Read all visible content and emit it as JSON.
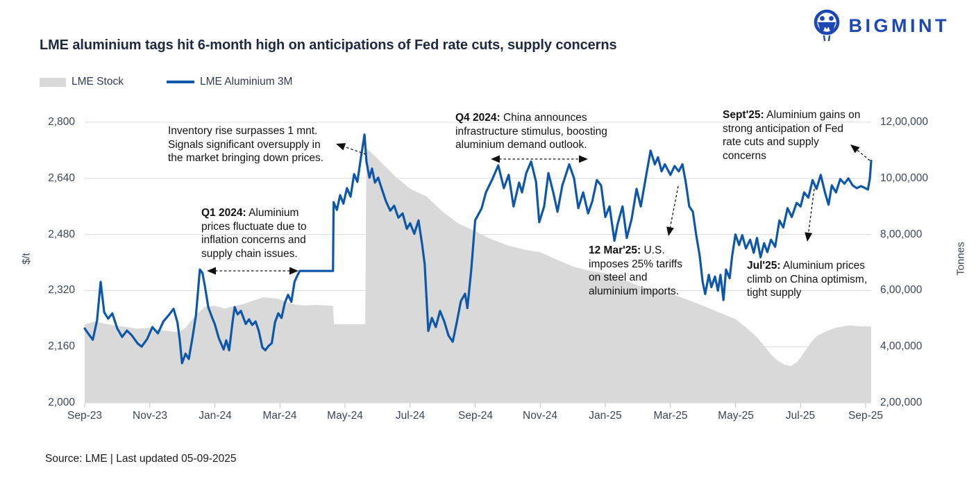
{
  "logo": {
    "text": "BIGMINT"
  },
  "title": "LME aluminium tags hit 6-month high on anticipations of Fed rate cuts, supply concerns",
  "legend": [
    {
      "label": "LME Stock",
      "type": "area",
      "color": "#d9d9d9"
    },
    {
      "label": "LME Aluminium 3M",
      "type": "line",
      "color": "#0e57a8"
    }
  ],
  "axes": {
    "y_left": {
      "title": "$/t",
      "min": 2000,
      "max": 2800,
      "ticks": [
        "2,800",
        "2,640",
        "2,480",
        "2,320",
        "2,160",
        "2,000"
      ]
    },
    "y_right": {
      "title": "Tonnes",
      "min": 200000,
      "max": 1200000,
      "ticks": [
        "12,00,000",
        "10,00,000",
        "8,00,000",
        "6,00,000",
        "4,00,000",
        "2,00,000"
      ]
    },
    "x": {
      "ticks": [
        "Sep-23",
        "Nov-23",
        "Jan-24",
        "Mar-24",
        "May-24",
        "Jul-24",
        "Sep-24",
        "Nov-24",
        "Jan-25",
        "Mar-25",
        "May-25",
        "Jul-25",
        "Sep-25"
      ]
    }
  },
  "annotations": [
    {
      "bold": "",
      "text": "Inventory rise surpasses 1 mnt. Signals significant oversupply in the market bringing down prices."
    },
    {
      "bold": "Q1 2024:",
      "text": " Aluminium prices fluctuate due to inflation concerns and supply chain issues."
    },
    {
      "bold": "Q4 2024:",
      "text": " China announces infrastructure stimulus, boosting aluminium demand outlook."
    },
    {
      "bold": "Sept'25:",
      "text": " Aluminium gains on strong anticipation of Fed rate cuts and supply concerns"
    },
    {
      "bold": "12 Mar'25:",
      "text": " U.S. imposes 25% tariffs on steel and aluminium imports."
    },
    {
      "bold": "Jul'25:",
      "text": " Aluminium prices climb on China optimism, tight supply"
    }
  ],
  "source": "Source: LME | Last updated 05-09-2025",
  "chart_data": {
    "type": "combo",
    "title": "LME aluminium tags hit 6-month high on anticipations of Fed rate cuts, supply concerns",
    "x_unit": "months since Sep-2023 (0 = Sep-23, 24 = Sep-25)",
    "x_ticks": [
      "Sep-23",
      "Nov-23",
      "Jan-24",
      "Mar-24",
      "May-24",
      "Jul-24",
      "Sep-24",
      "Nov-24",
      "Jan-25",
      "Mar-25",
      "May-25",
      "Jul-25",
      "Sep-25"
    ],
    "grid": true,
    "legend_position": "top-left",
    "series": [
      {
        "name": "LME Stock",
        "type": "area",
        "axis": "right",
        "unit": "Tonnes",
        "color": "#d9d9d9",
        "ylim": [
          200000,
          1200000
        ],
        "points": [
          [
            0,
            478000
          ],
          [
            0.3,
            490000
          ],
          [
            0.6,
            483000
          ],
          [
            1,
            474000
          ],
          [
            1.3,
            470000
          ],
          [
            1.6,
            464000
          ],
          [
            2,
            468000
          ],
          [
            2.3,
            461000
          ],
          [
            2.6,
            455000
          ],
          [
            2.9,
            452000
          ],
          [
            3.1,
            468000
          ],
          [
            3.3,
            497000
          ],
          [
            3.5,
            522000
          ],
          [
            3.7,
            542000
          ],
          [
            4,
            546000
          ],
          [
            4.3,
            536000
          ],
          [
            4.6,
            545000
          ],
          [
            4.9,
            553000
          ],
          [
            5.2,
            565000
          ],
          [
            5.5,
            576000
          ],
          [
            5.9,
            572000
          ],
          [
            6.2,
            560000
          ],
          [
            6.5,
            549000
          ],
          [
            6.8,
            547000
          ],
          [
            7.1,
            549000
          ],
          [
            7.4,
            547000
          ],
          [
            7.63,
            545000
          ],
          [
            7.66,
            480000
          ],
          [
            8.62,
            480000
          ],
          [
            8.66,
            1108000
          ],
          [
            8.9,
            1082000
          ],
          [
            9.2,
            1046000
          ],
          [
            9.6,
            1001000
          ],
          [
            10,
            963000
          ],
          [
            10.5,
            936000
          ],
          [
            11,
            881000
          ],
          [
            11.5,
            838000
          ],
          [
            12,
            812000
          ],
          [
            12.5,
            783000
          ],
          [
            13,
            761000
          ],
          [
            13.5,
            746000
          ],
          [
            14,
            737000
          ],
          [
            14.5,
            711000
          ],
          [
            15,
            686000
          ],
          [
            15.5,
            671000
          ],
          [
            16,
            662000
          ],
          [
            16.5,
            641000
          ],
          [
            17,
            618000
          ],
          [
            17.5,
            601000
          ],
          [
            18,
            590000
          ],
          [
            18.5,
            568000
          ],
          [
            19,
            546000
          ],
          [
            19.5,
            522000
          ],
          [
            20,
            498000
          ],
          [
            20.3,
            471000
          ],
          [
            20.6,
            441000
          ],
          [
            20.9,
            401000
          ],
          [
            21.1,
            371000
          ],
          [
            21.3,
            350000
          ],
          [
            21.5,
            337000
          ],
          [
            21.7,
            331000
          ],
          [
            21.9,
            346000
          ],
          [
            22.1,
            378000
          ],
          [
            22.3,
            412000
          ],
          [
            22.5,
            438000
          ],
          [
            22.8,
            456000
          ],
          [
            23.1,
            468000
          ],
          [
            23.5,
            476000
          ],
          [
            23.8,
            473000
          ],
          [
            24.17,
            472000
          ]
        ]
      },
      {
        "name": "LME Aluminium 3M",
        "type": "line",
        "axis": "left",
        "unit": "$/t",
        "color": "#0e57a8",
        "ylim": [
          2000,
          2800
        ],
        "points": [
          [
            0,
            2212
          ],
          [
            0.12,
            2196
          ],
          [
            0.25,
            2180
          ],
          [
            0.38,
            2235
          ],
          [
            0.49,
            2345
          ],
          [
            0.6,
            2258
          ],
          [
            0.72,
            2240
          ],
          [
            0.85,
            2255
          ],
          [
            1,
            2212
          ],
          [
            1.15,
            2188
          ],
          [
            1.3,
            2206
          ],
          [
            1.45,
            2192
          ],
          [
            1.62,
            2170
          ],
          [
            1.75,
            2160
          ],
          [
            1.92,
            2182
          ],
          [
            2.08,
            2216
          ],
          [
            2.25,
            2198
          ],
          [
            2.42,
            2232
          ],
          [
            2.6,
            2252
          ],
          [
            2.73,
            2268
          ],
          [
            2.85,
            2230
          ],
          [
            2.92,
            2180
          ],
          [
            2.99,
            2113
          ],
          [
            3.1,
            2140
          ],
          [
            3.2,
            2125
          ],
          [
            3.32,
            2190
          ],
          [
            3.42,
            2250
          ],
          [
            3.54,
            2380
          ],
          [
            3.62,
            2370
          ],
          [
            3.7,
            2330
          ],
          [
            3.8,
            2272
          ],
          [
            3.92,
            2242
          ],
          [
            4,
            2224
          ],
          [
            4.12,
            2185
          ],
          [
            4.27,
            2152
          ],
          [
            4.35,
            2178
          ],
          [
            4.44,
            2150
          ],
          [
            4.55,
            2235
          ],
          [
            4.61,
            2273
          ],
          [
            4.7,
            2252
          ],
          [
            4.8,
            2262
          ],
          [
            4.95,
            2225
          ],
          [
            5.05,
            2238
          ],
          [
            5.15,
            2222
          ],
          [
            5.25,
            2232
          ],
          [
            5.35,
            2205
          ],
          [
            5.46,
            2158
          ],
          [
            5.55,
            2150
          ],
          [
            5.65,
            2162
          ],
          [
            5.75,
            2170
          ],
          [
            5.85,
            2230
          ],
          [
            5.95,
            2255
          ],
          [
            6.05,
            2242
          ],
          [
            6.15,
            2285
          ],
          [
            6.25,
            2308
          ],
          [
            6.35,
            2288
          ],
          [
            6.45,
            2345
          ],
          [
            6.53,
            2362
          ],
          [
            6.61,
            2376
          ],
          [
            7.63,
            2376
          ],
          [
            7.65,
            2572
          ],
          [
            7.75,
            2550
          ],
          [
            7.85,
            2592
          ],
          [
            7.95,
            2568
          ],
          [
            8.06,
            2612
          ],
          [
            8.17,
            2588
          ],
          [
            8.28,
            2652
          ],
          [
            8.38,
            2630
          ],
          [
            8.49,
            2700
          ],
          [
            8.6,
            2765
          ],
          [
            8.66,
            2688
          ],
          [
            8.75,
            2642
          ],
          [
            8.83,
            2668
          ],
          [
            8.92,
            2628
          ],
          [
            9.02,
            2642
          ],
          [
            9.13,
            2610
          ],
          [
            9.26,
            2574
          ],
          [
            9.39,
            2548
          ],
          [
            9.51,
            2562
          ],
          [
            9.64,
            2528
          ],
          [
            9.77,
            2540
          ],
          [
            9.9,
            2496
          ],
          [
            10,
            2512
          ],
          [
            10.13,
            2482
          ],
          [
            10.26,
            2520
          ],
          [
            10.37,
            2452
          ],
          [
            10.45,
            2395
          ],
          [
            10.56,
            2205
          ],
          [
            10.67,
            2242
          ],
          [
            10.79,
            2216
          ],
          [
            10.92,
            2262
          ],
          [
            11.05,
            2232
          ],
          [
            11.18,
            2192
          ],
          [
            11.31,
            2174
          ],
          [
            11.44,
            2232
          ],
          [
            11.56,
            2290
          ],
          [
            11.69,
            2311
          ],
          [
            11.76,
            2270
          ],
          [
            11.88,
            2380
          ],
          [
            12,
            2520
          ],
          [
            12.2,
            2555
          ],
          [
            12.33,
            2600
          ],
          [
            12.54,
            2640
          ],
          [
            12.71,
            2677
          ],
          [
            12.88,
            2612
          ],
          [
            13.03,
            2650
          ],
          [
            13.18,
            2560
          ],
          [
            13.35,
            2628
          ],
          [
            13.44,
            2600
          ],
          [
            13.57,
            2655
          ],
          [
            13.72,
            2688
          ],
          [
            13.87,
            2630
          ],
          [
            13.97,
            2515
          ],
          [
            14.12,
            2560
          ],
          [
            14.25,
            2655
          ],
          [
            14.4,
            2600
          ],
          [
            14.53,
            2545
          ],
          [
            14.68,
            2620
          ],
          [
            14.89,
            2680
          ],
          [
            15.04,
            2640
          ],
          [
            15.17,
            2555
          ],
          [
            15.32,
            2600
          ],
          [
            15.47,
            2540
          ],
          [
            15.6,
            2575
          ],
          [
            15.74,
            2635
          ],
          [
            15.87,
            2620
          ],
          [
            16,
            2530
          ],
          [
            16.13,
            2560
          ],
          [
            16.28,
            2462
          ],
          [
            16.38,
            2510
          ],
          [
            16.53,
            2560
          ],
          [
            16.66,
            2470
          ],
          [
            16.81,
            2525
          ],
          [
            16.96,
            2610
          ],
          [
            17.09,
            2560
          ],
          [
            17.24,
            2640
          ],
          [
            17.39,
            2719
          ],
          [
            17.52,
            2680
          ],
          [
            17.62,
            2700
          ],
          [
            17.73,
            2660
          ],
          [
            17.83,
            2680
          ],
          [
            18,
            2650
          ],
          [
            18.13,
            2675
          ],
          [
            18.26,
            2660
          ],
          [
            18.37,
            2680
          ],
          [
            18.47,
            2630
          ],
          [
            18.58,
            2560
          ],
          [
            18.69,
            2545
          ],
          [
            18.79,
            2480
          ],
          [
            18.9,
            2420
          ],
          [
            18.99,
            2345
          ],
          [
            19.07,
            2310
          ],
          [
            19.18,
            2365
          ],
          [
            19.26,
            2330
          ],
          [
            19.37,
            2360
          ],
          [
            19.46,
            2320
          ],
          [
            19.54,
            2365
          ],
          [
            19.63,
            2293
          ],
          [
            19.71,
            2380
          ],
          [
            19.82,
            2355
          ],
          [
            19.9,
            2420
          ],
          [
            20,
            2480
          ],
          [
            20.11,
            2450
          ],
          [
            20.21,
            2478
          ],
          [
            20.32,
            2440
          ],
          [
            20.45,
            2465
          ],
          [
            20.56,
            2428
          ],
          [
            20.66,
            2470
          ],
          [
            20.77,
            2415
          ],
          [
            20.88,
            2455
          ],
          [
            20.98,
            2430
          ],
          [
            21.09,
            2465
          ],
          [
            21.22,
            2445
          ],
          [
            21.35,
            2520
          ],
          [
            21.47,
            2500
          ],
          [
            21.6,
            2555
          ],
          [
            21.73,
            2530
          ],
          [
            21.88,
            2570
          ],
          [
            22,
            2560
          ],
          [
            22.11,
            2600
          ],
          [
            22.24,
            2585
          ],
          [
            22.37,
            2635
          ],
          [
            22.49,
            2610
          ],
          [
            22.62,
            2650
          ],
          [
            22.75,
            2600
          ],
          [
            22.86,
            2565
          ],
          [
            22.96,
            2620
          ],
          [
            23.09,
            2600
          ],
          [
            23.22,
            2638
          ],
          [
            23.35,
            2625
          ],
          [
            23.47,
            2640
          ],
          [
            23.6,
            2620
          ],
          [
            23.73,
            2612
          ],
          [
            23.86,
            2618
          ],
          [
            23.99,
            2612
          ],
          [
            24.07,
            2608
          ],
          [
            24.13,
            2640
          ],
          [
            24.17,
            2690
          ]
        ]
      }
    ]
  }
}
